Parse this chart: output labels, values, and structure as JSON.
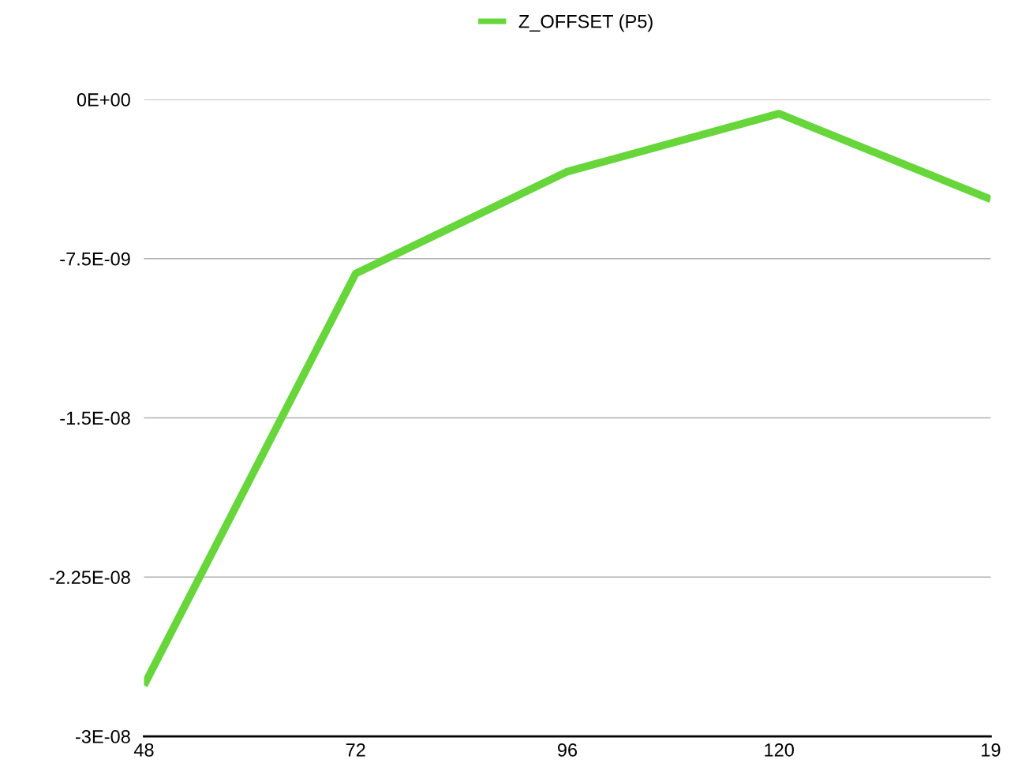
{
  "chart_data": {
    "type": "line",
    "categories": [
      "48",
      "72",
      "96",
      "120",
      "19"
    ],
    "series": [
      {
        "name": "Z_OFFSET (P5)",
        "color": "#66d63a",
        "values": [
          -2.76e-08,
          -8.2e-09,
          -3.4e-09,
          -6.7e-10,
          -4.7e-09
        ]
      }
    ],
    "ylim": [
      -3e-08,
      0
    ],
    "yticks": [
      {
        "value": -3e-08,
        "label": "-3E-08"
      },
      {
        "value": -2.25e-08,
        "label": "-2.25E-08"
      },
      {
        "value": -1.5e-08,
        "label": "-1.5E-08"
      },
      {
        "value": -7.5e-09,
        "label": "-7.5E-09"
      },
      {
        "value": 0,
        "label": "0E+00"
      }
    ],
    "grid": "y",
    "legend": "top",
    "marker": "none",
    "line_style": "solid"
  }
}
